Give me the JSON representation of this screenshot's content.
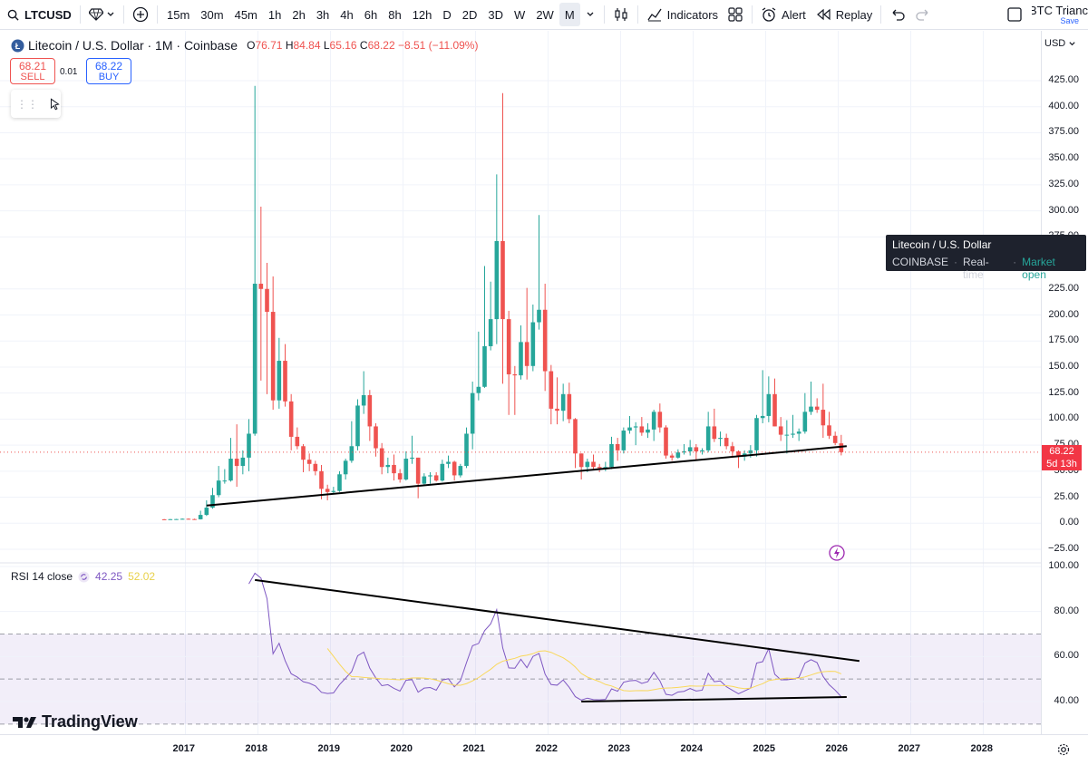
{
  "toolbar": {
    "symbol": "LTCUSD",
    "timeframes": [
      "15m",
      "30m",
      "45m",
      "1h",
      "2h",
      "3h",
      "4h",
      "6h",
      "8h",
      "12h",
      "D",
      "2D",
      "3D",
      "W",
      "2W",
      "M"
    ],
    "active_timeframe": "M",
    "indicators_label": "Indicators",
    "alert_label": "Alert",
    "replay_label": "Replay",
    "layout_name": "BTC Trianc",
    "layout_save": "Save"
  },
  "legend": {
    "title": "Litecoin / U.S. Dollar · 1M · Coinbase",
    "o_label": "O",
    "o": "76.71",
    "h_label": "H",
    "h": "84.84",
    "l_label": "L",
    "l": "65.16",
    "c_label": "C",
    "c": "68.22",
    "change": "−8.51 (−11.09%)"
  },
  "trade": {
    "sell_price": "68.21",
    "sell_label": "SELL",
    "spread": "0.01",
    "buy_price": "68.22",
    "buy_label": "BUY"
  },
  "tooltip": {
    "name": "Litecoin / U.S. Dollar",
    "exchange": "COINBASE",
    "feed": "Real-time",
    "status": "Market open",
    "sep": "·"
  },
  "rsi": {
    "label": "RSI 14 close",
    "value": "42.25",
    "ma_value": "52.02"
  },
  "price_axis": {
    "currency": "USD",
    "labels": [
      "425.00",
      "400.00",
      "375.00",
      "350.00",
      "325.00",
      "300.00",
      "275.00",
      "225.00",
      "200.00",
      "175.00",
      "150.00",
      "125.00",
      "100.00",
      "75.00",
      "50.00",
      "25.00",
      "0.00",
      "−25.00"
    ],
    "current_price": "68.22",
    "countdown": "5d 13h"
  },
  "rsi_axis": {
    "labels": [
      "100.00",
      "80.00",
      "60.00",
      "40.00"
    ]
  },
  "time_axis": {
    "labels": [
      "2017",
      "2018",
      "2019",
      "2020",
      "2021",
      "2022",
      "2023",
      "2024",
      "2025",
      "2026",
      "2027",
      "2028"
    ]
  },
  "brand": {
    "logo_text": "TradingView"
  },
  "colors": {
    "up": "#26a69a",
    "down": "#ef5350",
    "rsi_line": "#7e57c2",
    "rsi_ma": "#f9d85b",
    "trendline": "#000000",
    "sell": "#ef5350",
    "buy": "#2962ff"
  },
  "chart_data": {
    "type": "candlestick",
    "symbol": "LTCUSD",
    "interval": "1M",
    "exchange": "Coinbase",
    "price_range": [
      -25,
      425
    ],
    "candles": [
      {
        "t": "2016-09",
        "o": 3.8,
        "h": 4.0,
        "l": 3.6,
        "c": 3.7
      },
      {
        "t": "2016-10",
        "o": 3.7,
        "h": 4.1,
        "l": 3.6,
        "c": 3.9
      },
      {
        "t": "2016-11",
        "o": 3.9,
        "h": 4.2,
        "l": 3.7,
        "c": 4.0
      },
      {
        "t": "2016-12",
        "o": 4.0,
        "h": 4.6,
        "l": 3.8,
        "c": 4.3
      },
      {
        "t": "2017-01",
        "o": 4.3,
        "h": 4.6,
        "l": 3.8,
        "c": 4.0
      },
      {
        "t": "2017-02",
        "o": 4.0,
        "h": 4.4,
        "l": 3.7,
        "c": 3.8
      },
      {
        "t": "2017-03",
        "o": 3.8,
        "h": 12,
        "l": 3.6,
        "c": 8
      },
      {
        "t": "2017-04",
        "o": 8,
        "h": 22,
        "l": 7,
        "c": 15
      },
      {
        "t": "2017-05",
        "o": 15,
        "h": 34,
        "l": 14,
        "c": 27
      },
      {
        "t": "2017-06",
        "o": 27,
        "h": 55,
        "l": 25,
        "c": 41
      },
      {
        "t": "2017-07",
        "o": 41,
        "h": 52,
        "l": 38,
        "c": 41
      },
      {
        "t": "2017-08",
        "o": 41,
        "h": 82,
        "l": 40,
        "c": 62
      },
      {
        "t": "2017-09",
        "o": 62,
        "h": 95,
        "l": 35,
        "c": 55
      },
      {
        "t": "2017-10",
        "o": 55,
        "h": 70,
        "l": 47,
        "c": 63
      },
      {
        "t": "2017-11",
        "o": 63,
        "h": 100,
        "l": 50,
        "c": 86
      },
      {
        "t": "2017-12",
        "o": 86,
        "h": 420,
        "l": 84,
        "c": 230
      },
      {
        "t": "2018-01",
        "o": 230,
        "h": 304,
        "l": 137,
        "c": 225
      },
      {
        "t": "2018-02",
        "o": 225,
        "h": 250,
        "l": 124,
        "c": 203
      },
      {
        "t": "2018-03",
        "o": 203,
        "h": 237,
        "l": 109,
        "c": 118
      },
      {
        "t": "2018-04",
        "o": 118,
        "h": 178,
        "l": 110,
        "c": 156
      },
      {
        "t": "2018-05",
        "o": 156,
        "h": 172,
        "l": 112,
        "c": 117
      },
      {
        "t": "2018-06",
        "o": 117,
        "h": 124,
        "l": 70,
        "c": 83
      },
      {
        "t": "2018-07",
        "o": 83,
        "h": 92,
        "l": 71,
        "c": 74
      },
      {
        "t": "2018-08",
        "o": 74,
        "h": 76,
        "l": 49,
        "c": 61
      },
      {
        "t": "2018-09",
        "o": 61,
        "h": 67,
        "l": 50,
        "c": 57
      },
      {
        "t": "2018-10",
        "o": 57,
        "h": 60,
        "l": 46,
        "c": 50
      },
      {
        "t": "2018-11",
        "o": 50,
        "h": 56,
        "l": 23,
        "c": 33
      },
      {
        "t": "2018-12",
        "o": 33,
        "h": 37,
        "l": 22,
        "c": 30
      },
      {
        "t": "2019-01",
        "o": 30,
        "h": 35,
        "l": 29,
        "c": 31
      },
      {
        "t": "2019-02",
        "o": 31,
        "h": 50,
        "l": 30,
        "c": 47
      },
      {
        "t": "2019-03",
        "o": 47,
        "h": 62,
        "l": 42,
        "c": 60
      },
      {
        "t": "2019-04",
        "o": 60,
        "h": 98,
        "l": 58,
        "c": 74
      },
      {
        "t": "2019-05",
        "o": 74,
        "h": 119,
        "l": 70,
        "c": 113
      },
      {
        "t": "2019-06",
        "o": 113,
        "h": 146,
        "l": 105,
        "c": 123
      },
      {
        "t": "2019-07",
        "o": 123,
        "h": 128,
        "l": 79,
        "c": 93
      },
      {
        "t": "2019-08",
        "o": 93,
        "h": 96,
        "l": 64,
        "c": 72
      },
      {
        "t": "2019-09",
        "o": 72,
        "h": 77,
        "l": 47,
        "c": 54
      },
      {
        "t": "2019-10",
        "o": 54,
        "h": 63,
        "l": 48,
        "c": 56
      },
      {
        "t": "2019-11",
        "o": 56,
        "h": 66,
        "l": 41,
        "c": 48
      },
      {
        "t": "2019-12",
        "o": 48,
        "h": 52,
        "l": 39,
        "c": 42
      },
      {
        "t": "2020-01",
        "o": 42,
        "h": 69,
        "l": 41,
        "c": 62
      },
      {
        "t": "2020-02",
        "o": 62,
        "h": 84,
        "l": 57,
        "c": 63
      },
      {
        "t": "2020-03",
        "o": 63,
        "h": 63,
        "l": 24,
        "c": 38
      },
      {
        "t": "2020-04",
        "o": 38,
        "h": 48,
        "l": 36,
        "c": 45
      },
      {
        "t": "2020-05",
        "o": 45,
        "h": 49,
        "l": 38,
        "c": 46
      },
      {
        "t": "2020-06",
        "o": 46,
        "h": 49,
        "l": 40,
        "c": 41
      },
      {
        "t": "2020-07",
        "o": 41,
        "h": 61,
        "l": 40,
        "c": 57
      },
      {
        "t": "2020-08",
        "o": 57,
        "h": 65,
        "l": 53,
        "c": 59
      },
      {
        "t": "2020-09",
        "o": 59,
        "h": 60,
        "l": 41,
        "c": 46
      },
      {
        "t": "2020-10",
        "o": 46,
        "h": 57,
        "l": 44,
        "c": 55
      },
      {
        "t": "2020-11",
        "o": 55,
        "h": 92,
        "l": 53,
        "c": 86
      },
      {
        "t": "2020-12",
        "o": 86,
        "h": 136,
        "l": 71,
        "c": 125
      },
      {
        "t": "2021-01",
        "o": 125,
        "h": 184,
        "l": 118,
        "c": 131
      },
      {
        "t": "2021-02",
        "o": 131,
        "h": 247,
        "l": 130,
        "c": 170
      },
      {
        "t": "2021-03",
        "o": 170,
        "h": 232,
        "l": 166,
        "c": 196
      },
      {
        "t": "2021-04",
        "o": 196,
        "h": 335,
        "l": 172,
        "c": 271
      },
      {
        "t": "2021-05",
        "o": 271,
        "h": 413,
        "l": 134,
        "c": 196
      },
      {
        "t": "2021-06",
        "o": 196,
        "h": 204,
        "l": 104,
        "c": 143
      },
      {
        "t": "2021-07",
        "o": 143,
        "h": 151,
        "l": 104,
        "c": 142
      },
      {
        "t": "2021-08",
        "o": 142,
        "h": 190,
        "l": 138,
        "c": 174
      },
      {
        "t": "2021-09",
        "o": 174,
        "h": 226,
        "l": 138,
        "c": 151
      },
      {
        "t": "2021-10",
        "o": 151,
        "h": 210,
        "l": 146,
        "c": 193
      },
      {
        "t": "2021-11",
        "o": 193,
        "h": 296,
        "l": 186,
        "c": 205
      },
      {
        "t": "2021-12",
        "o": 205,
        "h": 230,
        "l": 127,
        "c": 146
      },
      {
        "t": "2022-01",
        "o": 146,
        "h": 152,
        "l": 95,
        "c": 110
      },
      {
        "t": "2022-02",
        "o": 110,
        "h": 140,
        "l": 95,
        "c": 108
      },
      {
        "t": "2022-03",
        "o": 108,
        "h": 134,
        "l": 98,
        "c": 124
      },
      {
        "t": "2022-04",
        "o": 124,
        "h": 135,
        "l": 96,
        "c": 100
      },
      {
        "t": "2022-05",
        "o": 100,
        "h": 101,
        "l": 53,
        "c": 67
      },
      {
        "t": "2022-06",
        "o": 67,
        "h": 67,
        "l": 42,
        "c": 54
      },
      {
        "t": "2022-07",
        "o": 54,
        "h": 62,
        "l": 49,
        "c": 59
      },
      {
        "t": "2022-08",
        "o": 59,
        "h": 66,
        "l": 51,
        "c": 54
      },
      {
        "t": "2022-09",
        "o": 54,
        "h": 57,
        "l": 49,
        "c": 53
      },
      {
        "t": "2022-10",
        "o": 53,
        "h": 59,
        "l": 50,
        "c": 54
      },
      {
        "t": "2022-11",
        "o": 54,
        "h": 83,
        "l": 52,
        "c": 76
      },
      {
        "t": "2022-12",
        "o": 76,
        "h": 82,
        "l": 60,
        "c": 70
      },
      {
        "t": "2023-01",
        "o": 70,
        "h": 92,
        "l": 67,
        "c": 89
      },
      {
        "t": "2023-02",
        "o": 89,
        "h": 103,
        "l": 86,
        "c": 92
      },
      {
        "t": "2023-03",
        "o": 92,
        "h": 97,
        "l": 75,
        "c": 93
      },
      {
        "t": "2023-04",
        "o": 93,
        "h": 102,
        "l": 84,
        "c": 87
      },
      {
        "t": "2023-05",
        "o": 87,
        "h": 96,
        "l": 82,
        "c": 90
      },
      {
        "t": "2023-06",
        "o": 90,
        "h": 109,
        "l": 79,
        "c": 107
      },
      {
        "t": "2023-07",
        "o": 107,
        "h": 115,
        "l": 87,
        "c": 92
      },
      {
        "t": "2023-08",
        "o": 92,
        "h": 94,
        "l": 62,
        "c": 65
      },
      {
        "t": "2023-09",
        "o": 65,
        "h": 67,
        "l": 60,
        "c": 63
      },
      {
        "t": "2023-10",
        "o": 63,
        "h": 71,
        "l": 62,
        "c": 68
      },
      {
        "t": "2023-11",
        "o": 68,
        "h": 76,
        "l": 66,
        "c": 69
      },
      {
        "t": "2023-12",
        "o": 69,
        "h": 80,
        "l": 65,
        "c": 73
      },
      {
        "t": "2024-01",
        "o": 73,
        "h": 76,
        "l": 61,
        "c": 69
      },
      {
        "t": "2024-02",
        "o": 69,
        "h": 72,
        "l": 66,
        "c": 70
      },
      {
        "t": "2024-03",
        "o": 70,
        "h": 107,
        "l": 68,
        "c": 93
      },
      {
        "t": "2024-04",
        "o": 93,
        "h": 110,
        "l": 78,
        "c": 81
      },
      {
        "t": "2024-05",
        "o": 81,
        "h": 88,
        "l": 74,
        "c": 82
      },
      {
        "t": "2024-06",
        "o": 82,
        "h": 86,
        "l": 71,
        "c": 74
      },
      {
        "t": "2024-07",
        "o": 74,
        "h": 78,
        "l": 64,
        "c": 69
      },
      {
        "t": "2024-08",
        "o": 69,
        "h": 70,
        "l": 53,
        "c": 64
      },
      {
        "t": "2024-09",
        "o": 64,
        "h": 70,
        "l": 60,
        "c": 67
      },
      {
        "t": "2024-10",
        "o": 67,
        "h": 75,
        "l": 63,
        "c": 70
      },
      {
        "t": "2024-11",
        "o": 70,
        "h": 104,
        "l": 64,
        "c": 101
      },
      {
        "t": "2024-12",
        "o": 101,
        "h": 147,
        "l": 96,
        "c": 103
      },
      {
        "t": "2025-01",
        "o": 103,
        "h": 141,
        "l": 97,
        "c": 124
      },
      {
        "t": "2025-02",
        "o": 124,
        "h": 139,
        "l": 93,
        "c": 93
      },
      {
        "t": "2025-03",
        "o": 93,
        "h": 102,
        "l": 79,
        "c": 85
      },
      {
        "t": "2025-04",
        "o": 85,
        "h": 99,
        "l": 67,
        "c": 85
      },
      {
        "t": "2025-05",
        "o": 85,
        "h": 104,
        "l": 82,
        "c": 86
      },
      {
        "t": "2025-06",
        "o": 86,
        "h": 91,
        "l": 79,
        "c": 88
      },
      {
        "t": "2025-07",
        "o": 88,
        "h": 125,
        "l": 86,
        "c": 107
      },
      {
        "t": "2025-08",
        "o": 107,
        "h": 136,
        "l": 104,
        "c": 112
      },
      {
        "t": "2025-09",
        "o": 112,
        "h": 120,
        "l": 106,
        "c": 109
      },
      {
        "t": "2025-10",
        "o": 109,
        "h": 134,
        "l": 82,
        "c": 94
      },
      {
        "t": "2025-11",
        "o": 94,
        "h": 107,
        "l": 81,
        "c": 84
      },
      {
        "t": "2025-12",
        "o": 84,
        "h": 88,
        "l": 75,
        "c": 77
      },
      {
        "t": "2026-01",
        "o": 76.71,
        "h": 84.84,
        "l": 65.16,
        "c": 68.22
      }
    ],
    "support_trendline": [
      {
        "t": "2017-04",
        "v": 17
      },
      {
        "t": "2026-01",
        "v": 74
      }
    ],
    "rsi": {
      "length": 14,
      "range": [
        0,
        100
      ],
      "bands": [
        30,
        50,
        70
      ],
      "current": 42.25,
      "ma_current": 52.02,
      "resistance_trendline": [
        {
          "t": "2017-12",
          "v": 94
        },
        {
          "t": "2026-04",
          "v": 58
        }
      ],
      "support_trendline": [
        {
          "t": "2022-06",
          "v": 40
        },
        {
          "t": "2026-01",
          "v": 42
        }
      ]
    }
  }
}
